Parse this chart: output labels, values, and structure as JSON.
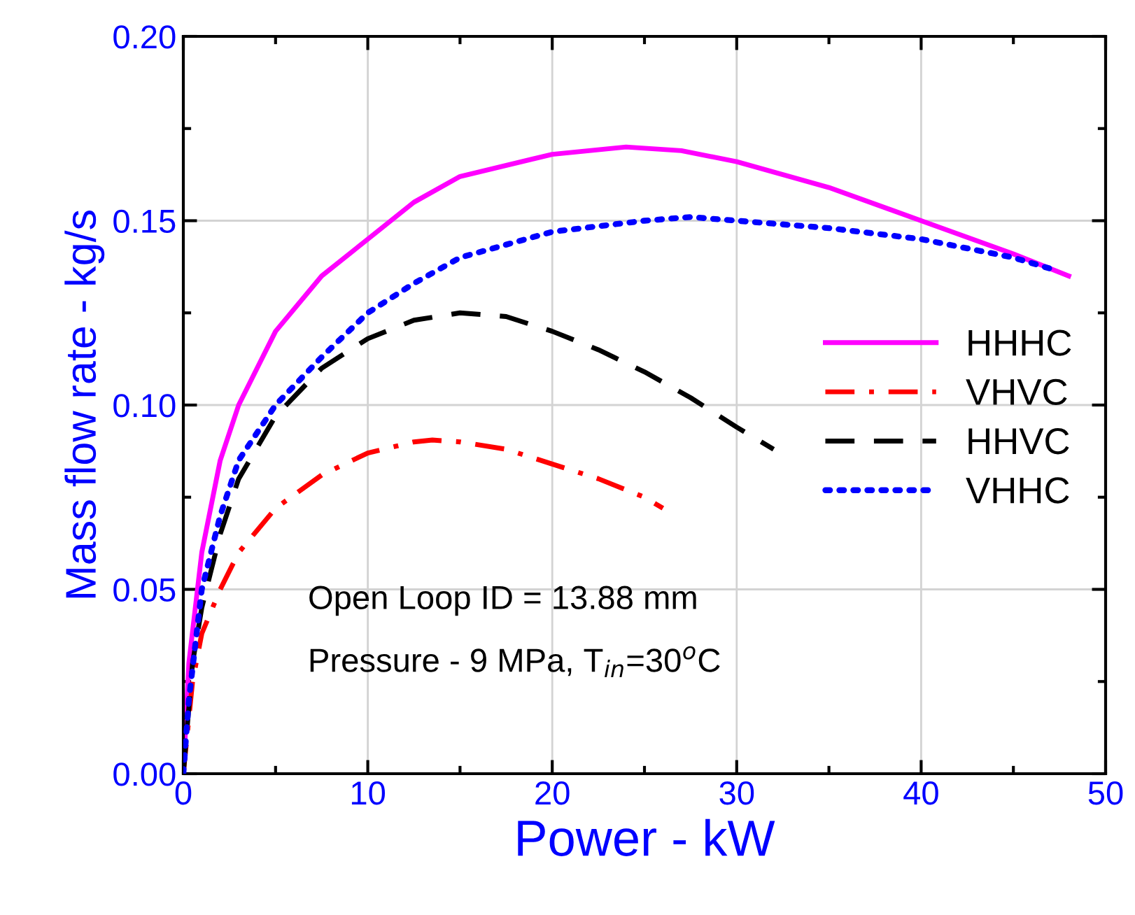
{
  "chart_data": {
    "type": "line",
    "xlabel": "Power - kW",
    "ylabel": "Mass flow rate - kg/s",
    "xlim": [
      0,
      50
    ],
    "ylim": [
      0,
      0.2
    ],
    "xticks": [
      0,
      10,
      20,
      30,
      40,
      50
    ],
    "yticks": [
      {
        "value": 0,
        "label": "0.00"
      },
      {
        "value": 0.05,
        "label": "0.05"
      },
      {
        "value": 0.1,
        "label": "0.10"
      },
      {
        "value": 0.15,
        "label": "0.15"
      },
      {
        "value": 0.2,
        "label": "0.20"
      }
    ],
    "grid": true,
    "legend": "right",
    "marker": "none",
    "annotations": [
      "Open Loop ID = 13.88 mm",
      "Pressure - 9 MPa, T$_{in}$=30$^{o}$C"
    ],
    "series": [
      {
        "name": "HHHC",
        "color": "#ff00ff",
        "line_style": "solid",
        "x": [
          0,
          0.3,
          1,
          2,
          3,
          5,
          7.5,
          10,
          12.5,
          15,
          20,
          24,
          27,
          30,
          35,
          40,
          45,
          48
        ],
        "values": [
          0,
          0.03,
          0.06,
          0.085,
          0.1,
          0.12,
          0.135,
          0.145,
          0.155,
          0.162,
          0.168,
          0.17,
          0.169,
          0.166,
          0.159,
          0.15,
          0.141,
          0.135
        ]
      },
      {
        "name": "VHVC",
        "color": "#ff0000",
        "line_style": "dashdot",
        "x": [
          0,
          0.5,
          1,
          2,
          3,
          5,
          7.5,
          10,
          12.5,
          13.5,
          15,
          17.5,
          20,
          22.5,
          25,
          26
        ],
        "values": [
          0,
          0.025,
          0.038,
          0.05,
          0.06,
          0.072,
          0.081,
          0.087,
          0.09,
          0.0905,
          0.09,
          0.088,
          0.084,
          0.08,
          0.075,
          0.072
        ]
      },
      {
        "name": "HHVC",
        "color": "#000000",
        "line_style": "dashed",
        "x": [
          0,
          0.5,
          1,
          2,
          3,
          5,
          7.5,
          10,
          12.5,
          15,
          17.5,
          20,
          22.5,
          25,
          27.5,
          30,
          32
        ],
        "values": [
          0,
          0.03,
          0.045,
          0.065,
          0.08,
          0.097,
          0.11,
          0.118,
          0.123,
          0.125,
          0.124,
          0.12,
          0.115,
          0.109,
          0.102,
          0.094,
          0.088
        ]
      },
      {
        "name": "VHHC",
        "color": "#0000ff",
        "line_style": "dotted",
        "x": [
          0,
          0.3,
          1,
          2,
          3,
          5,
          7.5,
          10,
          12.5,
          15,
          20,
          25,
          27.5,
          30,
          35,
          40,
          45,
          47
        ],
        "values": [
          0,
          0.02,
          0.05,
          0.07,
          0.085,
          0.1,
          0.113,
          0.125,
          0.133,
          0.14,
          0.147,
          0.15,
          0.151,
          0.15,
          0.148,
          0.145,
          0.14,
          0.137
        ]
      }
    ]
  }
}
